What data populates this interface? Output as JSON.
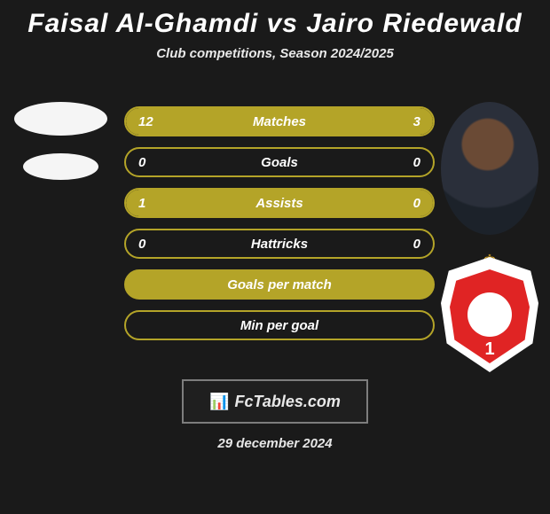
{
  "header": {
    "title": "Faisal Al-Ghamdi vs Jairo Riedewald",
    "subtitle": "Club competitions, Season 2024/2025"
  },
  "badge": {
    "number": "1",
    "crown_color": "#e8b020",
    "shield_outer": "#ffffff",
    "shield_inner": "#e02424"
  },
  "bars": [
    {
      "label": "Matches",
      "left": "12",
      "right": "3",
      "left_fill_pct": 78,
      "right_fill_pct": 22,
      "filled": false
    },
    {
      "label": "Goals",
      "left": "0",
      "right": "0",
      "left_fill_pct": 0,
      "right_fill_pct": 0,
      "filled": false
    },
    {
      "label": "Assists",
      "left": "1",
      "right": "0",
      "left_fill_pct": 100,
      "right_fill_pct": 0,
      "filled": false
    },
    {
      "label": "Hattricks",
      "left": "0",
      "right": "0",
      "left_fill_pct": 0,
      "right_fill_pct": 0,
      "filled": false
    },
    {
      "label": "Goals per match",
      "left": "",
      "right": "",
      "left_fill_pct": 0,
      "right_fill_pct": 0,
      "filled": true
    },
    {
      "label": "Min per goal",
      "left": "",
      "right": "",
      "left_fill_pct": 0,
      "right_fill_pct": 0,
      "filled": false
    }
  ],
  "logo": {
    "icon": "📊",
    "text": "FcTables.com"
  },
  "date": "29 december 2024",
  "colors": {
    "background": "#1a1a1a",
    "bar_color": "#b4a428",
    "text": "#ffffff"
  }
}
